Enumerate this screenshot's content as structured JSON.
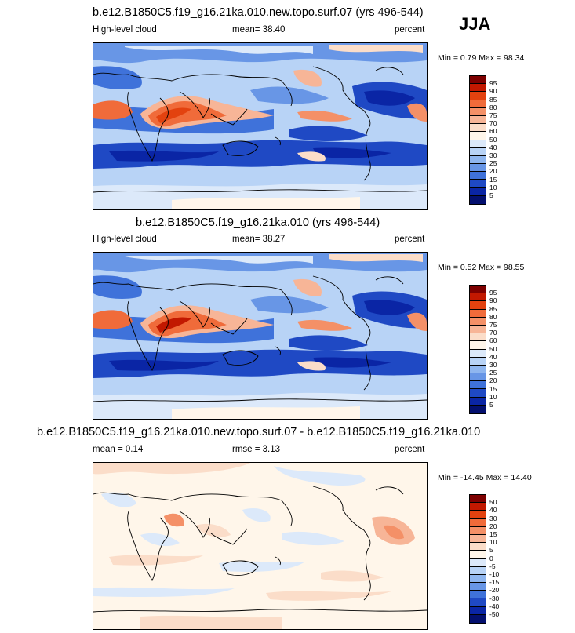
{
  "season": "JJA",
  "panels": [
    {
      "title": "b.e12.B1850C5.f19_g16.21ka.010.new.topo.surf.07 (yrs 496-544)",
      "left_label": "High-level cloud",
      "center_label": "mean=  38.40",
      "right_label": "percent",
      "minmax": "Min =   0.79 Max =  98.34",
      "levels": [
        "95",
        "90",
        "85",
        "80",
        "75",
        "70",
        "60",
        "50",
        "40",
        "30",
        "25",
        "20",
        "15",
        "10",
        "5"
      ],
      "colors": [
        "#7d0000",
        "#c21800",
        "#e3420f",
        "#f06b3a",
        "#f49067",
        "#f7b597",
        "#fbddc9",
        "#fff6ea",
        "#dce9fa",
        "#b8d3f6",
        "#8fb6ef",
        "#6896e6",
        "#3f72da",
        "#1f49c4",
        "#0a25a5",
        "#030f6e"
      ]
    },
    {
      "title": "b.e12.B1850C5.f19_g16.21ka.010 (yrs 496-544)",
      "left_label": "High-level cloud",
      "center_label": "mean=  38.27",
      "right_label": "percent",
      "minmax": "Min =   0.52 Max =  98.55",
      "levels": [
        "95",
        "90",
        "85",
        "80",
        "75",
        "70",
        "60",
        "50",
        "40",
        "30",
        "25",
        "20",
        "15",
        "10",
        "5"
      ],
      "colors": [
        "#7d0000",
        "#c21800",
        "#e3420f",
        "#f06b3a",
        "#f49067",
        "#f7b597",
        "#fbddc9",
        "#fff6ea",
        "#dce9fa",
        "#b8d3f6",
        "#8fb6ef",
        "#6896e6",
        "#3f72da",
        "#1f49c4",
        "#0a25a5",
        "#030f6e"
      ]
    },
    {
      "title": "b.e12.B1850C5.f19_g16.21ka.010.new.topo.surf.07 - b.e12.B1850C5.f19_g16.21ka.010",
      "left_label": "mean =   0.14",
      "center_label": "rmse =   3.13",
      "right_label": "percent",
      "minmax": "Min = -14.45 Max =  14.40",
      "levels": [
        "50",
        "40",
        "30",
        "20",
        "15",
        "10",
        "5",
        "0",
        "-5",
        "-10",
        "-15",
        "-20",
        "-30",
        "-40",
        "-50"
      ],
      "colors": [
        "#7d0000",
        "#c21800",
        "#e3420f",
        "#f06b3a",
        "#f49067",
        "#f7b597",
        "#fbddc9",
        "#fff6ea",
        "#dce9fa",
        "#b8d3f6",
        "#8fb6ef",
        "#6896e6",
        "#3f72da",
        "#1f49c4",
        "#0a25a5",
        "#030f6e"
      ]
    }
  ],
  "chart_data": [
    {
      "type": "heatmap",
      "title": "b.e12.B1850C5.f19_g16.21ka.010.new.topo.surf.07 (yrs 496-544)",
      "variable": "High-level cloud",
      "units": "percent",
      "mean": 38.4,
      "min": 0.79,
      "max": 98.34,
      "contour_levels": [
        5,
        10,
        15,
        20,
        25,
        30,
        40,
        50,
        60,
        70,
        75,
        80,
        85,
        90,
        95
      ]
    },
    {
      "type": "heatmap",
      "title": "b.e12.B1850C5.f19_g16.21ka.010 (yrs 496-544)",
      "variable": "High-level cloud",
      "units": "percent",
      "mean": 38.27,
      "min": 0.52,
      "max": 98.55,
      "contour_levels": [
        5,
        10,
        15,
        20,
        25,
        30,
        40,
        50,
        60,
        70,
        75,
        80,
        85,
        90,
        95
      ]
    },
    {
      "type": "heatmap",
      "title": "b.e12.B1850C5.f19_g16.21ka.010.new.topo.surf.07 - b.e12.B1850C5.f19_g16.21ka.010",
      "units": "percent",
      "mean": 0.14,
      "rmse": 3.13,
      "min": -14.45,
      "max": 14.4,
      "contour_levels": [
        -50,
        -40,
        -30,
        -20,
        -15,
        -10,
        -5,
        0,
        5,
        10,
        15,
        20,
        30,
        40,
        50
      ]
    }
  ]
}
